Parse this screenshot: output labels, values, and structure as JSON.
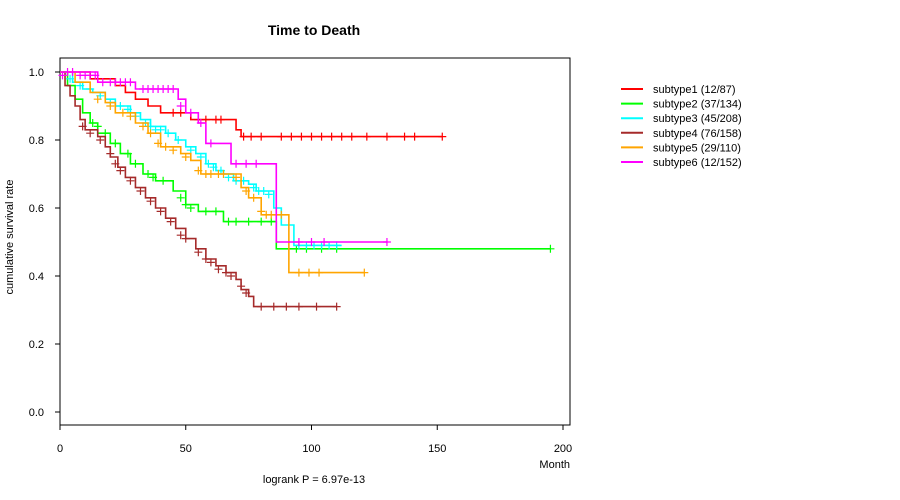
{
  "chart_data": {
    "type": "line",
    "title": "Time to Death",
    "xlabel": "Month",
    "ylabel": "cumulative survival rate",
    "xlim": [
      0,
      200
    ],
    "ylim": [
      0.0,
      1.0
    ],
    "x_ticks": [
      "0",
      "50",
      "100",
      "150",
      "200"
    ],
    "y_ticks": [
      "0.0",
      "0.2",
      "0.4",
      "0.6",
      "0.8",
      "1.0"
    ],
    "annotation": "logrank P = 6.97e-13",
    "legend_position": "top-right outside",
    "series": [
      {
        "name": "subtype1 (12/87)",
        "color": "#ff0000",
        "steps": [
          [
            0,
            1.0
          ],
          [
            12,
            0.98
          ],
          [
            22,
            0.96
          ],
          [
            26,
            0.94
          ],
          [
            30,
            0.92
          ],
          [
            35,
            0.9
          ],
          [
            40,
            0.88
          ],
          [
            52,
            0.86
          ],
          [
            65,
            0.86
          ],
          [
            70,
            0.83
          ],
          [
            72,
            0.81
          ],
          [
            152,
            0.81
          ]
        ],
        "censor": [
          [
            45,
            0.88
          ],
          [
            48,
            0.88
          ],
          [
            55,
            0.86
          ],
          [
            58,
            0.86
          ],
          [
            62,
            0.86
          ],
          [
            64,
            0.86
          ],
          [
            73,
            0.81
          ],
          [
            76,
            0.81
          ],
          [
            80,
            0.81
          ],
          [
            88,
            0.81
          ],
          [
            92,
            0.81
          ],
          [
            96,
            0.81
          ],
          [
            100,
            0.81
          ],
          [
            104,
            0.81
          ],
          [
            108,
            0.81
          ],
          [
            112,
            0.81
          ],
          [
            116,
            0.81
          ],
          [
            122,
            0.81
          ],
          [
            130,
            0.81
          ],
          [
            137,
            0.81
          ],
          [
            141,
            0.81
          ],
          [
            152,
            0.81
          ]
        ]
      },
      {
        "name": "subtype2 (37/134)",
        "color": "#00ff00",
        "steps": [
          [
            0,
            1.0
          ],
          [
            3,
            0.96
          ],
          [
            6,
            0.92
          ],
          [
            9,
            0.88
          ],
          [
            12,
            0.85
          ],
          [
            15,
            0.82
          ],
          [
            20,
            0.79
          ],
          [
            24,
            0.76
          ],
          [
            28,
            0.73
          ],
          [
            33,
            0.7
          ],
          [
            38,
            0.68
          ],
          [
            45,
            0.65
          ],
          [
            50,
            0.61
          ],
          [
            55,
            0.59
          ],
          [
            65,
            0.56
          ],
          [
            85,
            0.56
          ],
          [
            86,
            0.48
          ],
          [
            195,
            0.48
          ]
        ],
        "censor": [
          [
            13,
            0.85
          ],
          [
            15,
            0.84
          ],
          [
            18,
            0.82
          ],
          [
            22,
            0.79
          ],
          [
            27,
            0.76
          ],
          [
            30,
            0.73
          ],
          [
            35,
            0.7
          ],
          [
            37,
            0.69
          ],
          [
            41,
            0.68
          ],
          [
            48,
            0.63
          ],
          [
            50,
            0.61
          ],
          [
            52,
            0.6
          ],
          [
            58,
            0.59
          ],
          [
            62,
            0.59
          ],
          [
            67,
            0.56
          ],
          [
            70,
            0.56
          ],
          [
            75,
            0.56
          ],
          [
            80,
            0.56
          ],
          [
            84,
            0.56
          ],
          [
            94,
            0.48
          ],
          [
            98,
            0.48
          ],
          [
            104,
            0.48
          ],
          [
            110,
            0.48
          ],
          [
            195,
            0.48
          ]
        ]
      },
      {
        "name": "subtype3 (45/208)",
        "color": "#00ffff",
        "steps": [
          [
            0,
            1.0
          ],
          [
            5,
            0.97
          ],
          [
            9,
            0.95
          ],
          [
            13,
            0.94
          ],
          [
            18,
            0.92
          ],
          [
            22,
            0.9
          ],
          [
            28,
            0.88
          ],
          [
            32,
            0.86
          ],
          [
            36,
            0.84
          ],
          [
            42,
            0.82
          ],
          [
            46,
            0.8
          ],
          [
            50,
            0.78
          ],
          [
            54,
            0.76
          ],
          [
            58,
            0.73
          ],
          [
            62,
            0.71
          ],
          [
            65,
            0.7
          ],
          [
            69,
            0.68
          ],
          [
            75,
            0.67
          ],
          [
            78,
            0.65
          ],
          [
            85,
            0.6
          ],
          [
            88,
            0.55
          ],
          [
            93,
            0.49
          ],
          [
            112,
            0.49
          ]
        ],
        "censor": [
          [
            4,
            0.98
          ],
          [
            8,
            0.96
          ],
          [
            12,
            0.95
          ],
          [
            16,
            0.93
          ],
          [
            20,
            0.91
          ],
          [
            24,
            0.9
          ],
          [
            27,
            0.89
          ],
          [
            30,
            0.87
          ],
          [
            34,
            0.85
          ],
          [
            36,
            0.84
          ],
          [
            38,
            0.83
          ],
          [
            40,
            0.83
          ],
          [
            43,
            0.82
          ],
          [
            47,
            0.8
          ],
          [
            52,
            0.77
          ],
          [
            56,
            0.75
          ],
          [
            59,
            0.73
          ],
          [
            61,
            0.72
          ],
          [
            64,
            0.71
          ],
          [
            67,
            0.69
          ],
          [
            70,
            0.68
          ],
          [
            73,
            0.68
          ],
          [
            77,
            0.66
          ],
          [
            79,
            0.65
          ],
          [
            81,
            0.65
          ],
          [
            83,
            0.64
          ],
          [
            95,
            0.49
          ],
          [
            98,
            0.49
          ],
          [
            101,
            0.49
          ],
          [
            104,
            0.49
          ],
          [
            107,
            0.49
          ],
          [
            110,
            0.49
          ]
        ]
      },
      {
        "name": "subtype4 (76/158)",
        "color": "#a52a2a",
        "steps": [
          [
            0,
            1.0
          ],
          [
            2,
            0.96
          ],
          [
            4,
            0.93
          ],
          [
            6,
            0.9
          ],
          [
            8,
            0.86
          ],
          [
            10,
            0.83
          ],
          [
            15,
            0.81
          ],
          [
            18,
            0.78
          ],
          [
            20,
            0.75
          ],
          [
            23,
            0.72
          ],
          [
            26,
            0.69
          ],
          [
            30,
            0.66
          ],
          [
            34,
            0.63
          ],
          [
            38,
            0.6
          ],
          [
            42,
            0.57
          ],
          [
            46,
            0.54
          ],
          [
            50,
            0.51
          ],
          [
            54,
            0.48
          ],
          [
            58,
            0.45
          ],
          [
            62,
            0.43
          ],
          [
            66,
            0.41
          ],
          [
            70,
            0.39
          ],
          [
            72,
            0.36
          ],
          [
            75,
            0.34
          ],
          [
            77,
            0.31
          ],
          [
            110,
            0.31
          ]
        ],
        "censor": [
          [
            9,
            0.84
          ],
          [
            12,
            0.82
          ],
          [
            16,
            0.8
          ],
          [
            20,
            0.76
          ],
          [
            22,
            0.73
          ],
          [
            24,
            0.71
          ],
          [
            28,
            0.68
          ],
          [
            32,
            0.65
          ],
          [
            36,
            0.62
          ],
          [
            40,
            0.59
          ],
          [
            44,
            0.56
          ],
          [
            48,
            0.52
          ],
          [
            50,
            0.51
          ],
          [
            55,
            0.47
          ],
          [
            58,
            0.45
          ],
          [
            60,
            0.44
          ],
          [
            63,
            0.42
          ],
          [
            66,
            0.41
          ],
          [
            68,
            0.4
          ],
          [
            72,
            0.37
          ],
          [
            74,
            0.35
          ],
          [
            80,
            0.31
          ],
          [
            85,
            0.31
          ],
          [
            90,
            0.31
          ],
          [
            95,
            0.31
          ],
          [
            102,
            0.31
          ],
          [
            110,
            0.31
          ]
        ]
      },
      {
        "name": "subtype5 (29/110)",
        "color": "#ffa500",
        "steps": [
          [
            0,
            1.0
          ],
          [
            6,
            0.97
          ],
          [
            12,
            0.94
          ],
          [
            18,
            0.91
          ],
          [
            22,
            0.88
          ],
          [
            30,
            0.85
          ],
          [
            35,
            0.82
          ],
          [
            40,
            0.78
          ],
          [
            48,
            0.76
          ],
          [
            52,
            0.74
          ],
          [
            56,
            0.7
          ],
          [
            68,
            0.7
          ],
          [
            72,
            0.66
          ],
          [
            75,
            0.63
          ],
          [
            80,
            0.58
          ],
          [
            90,
            0.58
          ],
          [
            91,
            0.41
          ],
          [
            121,
            0.41
          ]
        ],
        "censor": [
          [
            15,
            0.92
          ],
          [
            20,
            0.9
          ],
          [
            25,
            0.88
          ],
          [
            28,
            0.87
          ],
          [
            33,
            0.84
          ],
          [
            36,
            0.82
          ],
          [
            39,
            0.79
          ],
          [
            42,
            0.78
          ],
          [
            45,
            0.77
          ],
          [
            50,
            0.75
          ],
          [
            55,
            0.71
          ],
          [
            58,
            0.7
          ],
          [
            60,
            0.7
          ],
          [
            63,
            0.7
          ],
          [
            65,
            0.7
          ],
          [
            70,
            0.69
          ],
          [
            74,
            0.65
          ],
          [
            77,
            0.63
          ],
          [
            80,
            0.59
          ],
          [
            82,
            0.58
          ],
          [
            84,
            0.58
          ],
          [
            86,
            0.58
          ],
          [
            88,
            0.58
          ],
          [
            95,
            0.41
          ],
          [
            99,
            0.41
          ],
          [
            103,
            0.41
          ],
          [
            121,
            0.41
          ]
        ]
      },
      {
        "name": "subtype6 (12/152)",
        "color": "#ff00ff",
        "steps": [
          [
            0,
            1.0
          ],
          [
            15,
            0.97
          ],
          [
            30,
            0.95
          ],
          [
            47,
            0.92
          ],
          [
            50,
            0.88
          ],
          [
            55,
            0.85
          ],
          [
            58,
            0.79
          ],
          [
            68,
            0.73
          ],
          [
            85,
            0.73
          ],
          [
            86,
            0.5
          ],
          [
            130,
            0.5
          ]
        ],
        "censor": [
          [
            1,
            0.99
          ],
          [
            3,
            1.0
          ],
          [
            5,
            1.0
          ],
          [
            8,
            0.99
          ],
          [
            10,
            0.99
          ],
          [
            12,
            0.99
          ],
          [
            14,
            0.99
          ],
          [
            17,
            0.97
          ],
          [
            20,
            0.97
          ],
          [
            22,
            0.97
          ],
          [
            24,
            0.97
          ],
          [
            26,
            0.97
          ],
          [
            28,
            0.97
          ],
          [
            33,
            0.95
          ],
          [
            35,
            0.95
          ],
          [
            37,
            0.95
          ],
          [
            39,
            0.95
          ],
          [
            41,
            0.95
          ],
          [
            43,
            0.95
          ],
          [
            45,
            0.95
          ],
          [
            48,
            0.9
          ],
          [
            52,
            0.88
          ],
          [
            56,
            0.85
          ],
          [
            60,
            0.79
          ],
          [
            70,
            0.73
          ],
          [
            74,
            0.73
          ],
          [
            78,
            0.73
          ],
          [
            95,
            0.5
          ],
          [
            100,
            0.5
          ],
          [
            105,
            0.5
          ],
          [
            130,
            0.5
          ]
        ]
      }
    ]
  }
}
